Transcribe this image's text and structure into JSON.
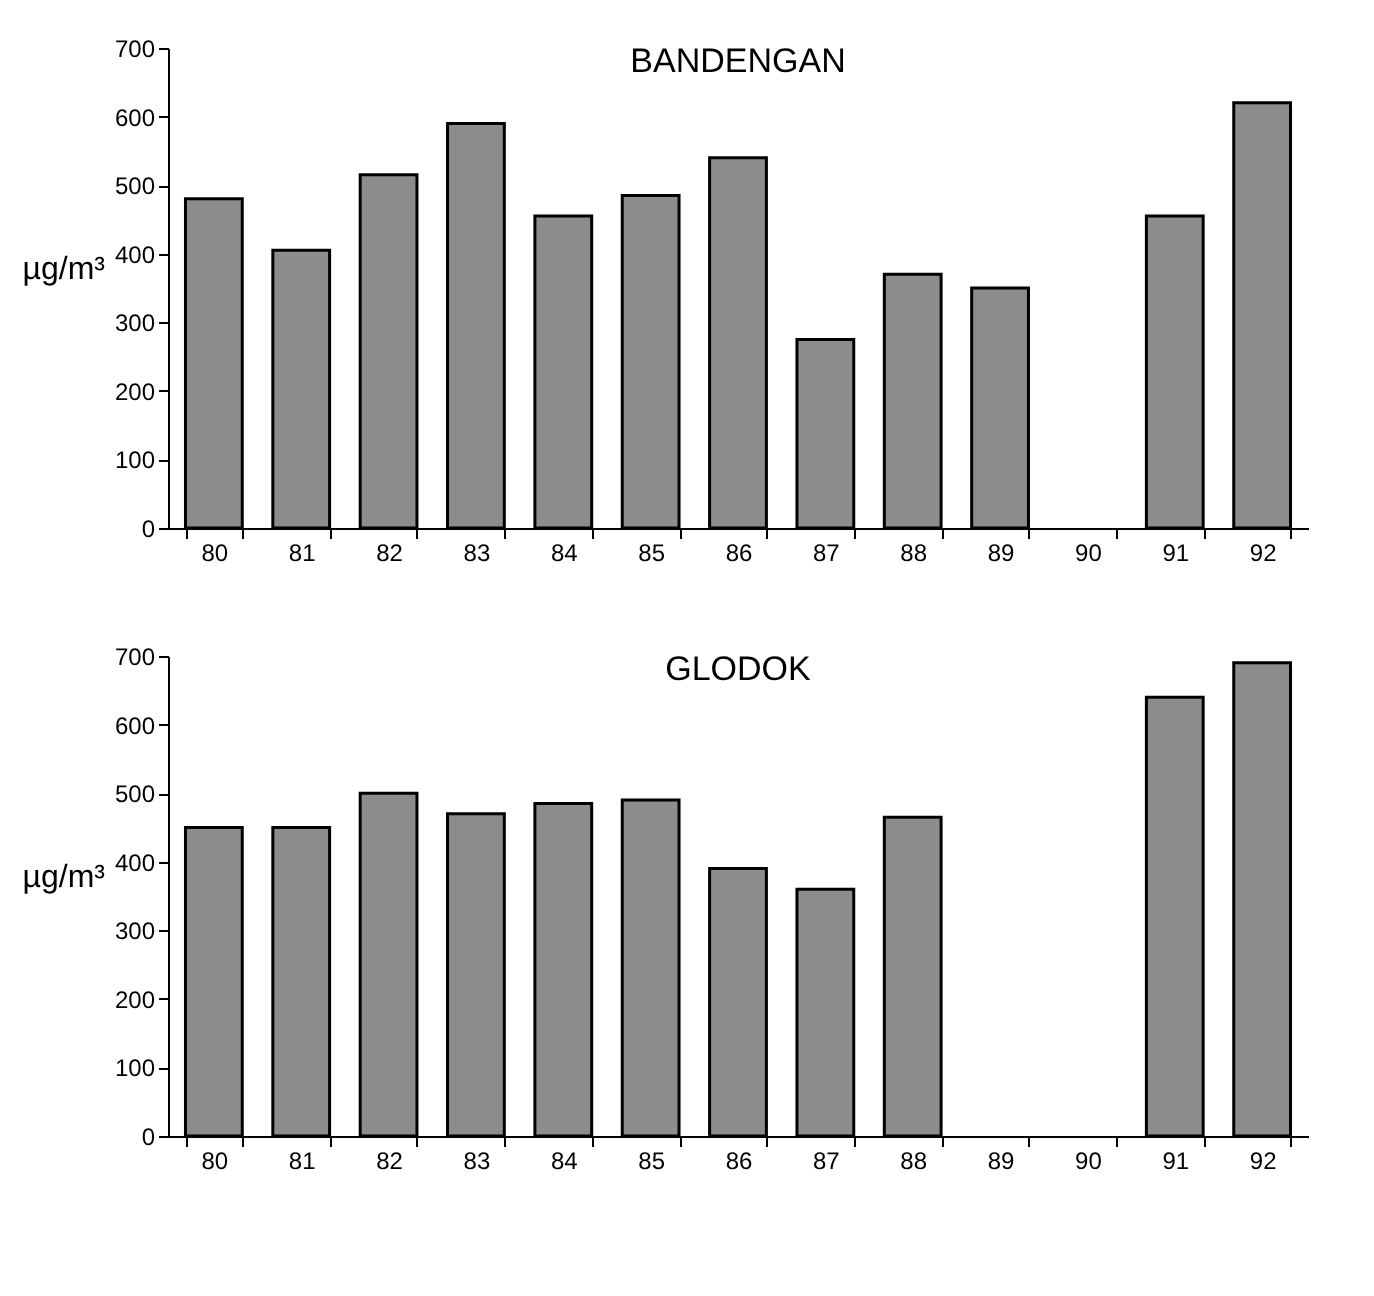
{
  "chart_data": [
    {
      "type": "bar",
      "title": "BANDENGAN",
      "ylabel": "µg/m³",
      "categories": [
        "80",
        "81",
        "82",
        "83",
        "84",
        "85",
        "86",
        "87",
        "88",
        "89",
        "90",
        "91",
        "92"
      ],
      "series": [
        {
          "color": "#8c8c8c",
          "values": [
            480,
            405,
            515,
            590,
            455,
            485,
            540,
            275,
            370,
            350,
            null,
            455,
            620
          ]
        }
      ],
      "ylim": [
        0,
        700
      ],
      "yticks": [
        0,
        100,
        200,
        300,
        400,
        500,
        600,
        700
      ],
      "grid": false
    },
    {
      "type": "bar",
      "title": "GLODOK",
      "ylabel": "µg/m³",
      "categories": [
        "80",
        "81",
        "82",
        "83",
        "84",
        "85",
        "86",
        "87",
        "88",
        "89",
        "90",
        "91",
        "92"
      ],
      "series": [
        {
          "color": "#8c8c8c",
          "values": [
            450,
            450,
            500,
            470,
            485,
            490,
            390,
            360,
            465,
            null,
            null,
            640,
            690
          ]
        }
      ],
      "ylim": [
        0,
        700
      ],
      "yticks": [
        0,
        100,
        200,
        300,
        400,
        500,
        600,
        700
      ],
      "grid": false
    }
  ]
}
